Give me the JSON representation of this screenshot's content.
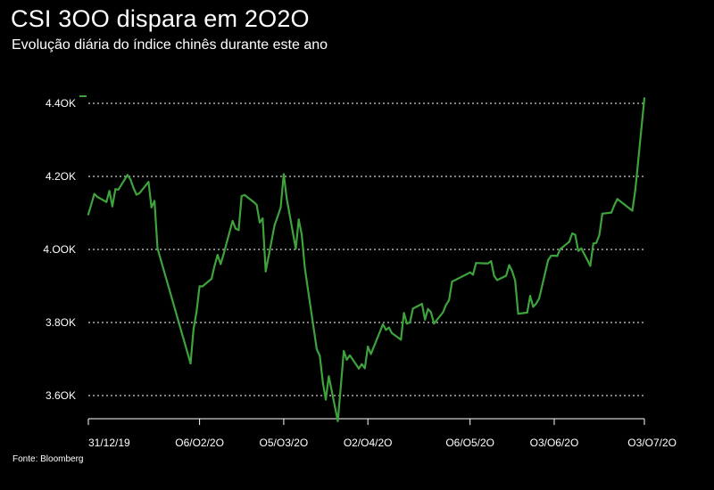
{
  "title": "CSI 3OO dispara em 2O2O",
  "subtitle": "Evolução diária do índice chinês durante este ano",
  "source": "Fonte: Bloomberg",
  "colors": {
    "background": "#000000",
    "line": "#3ea33c",
    "text": "#ffffff",
    "grid": "#ffffff"
  },
  "chart_data": {
    "type": "line",
    "title": "CSI 3OO dispara em 2O2O",
    "subtitle": "Evolução diária do índice chinês durante este ano",
    "xlabel": "",
    "ylabel": "",
    "grid": true,
    "grid_style": "dotted horizontal",
    "legend": "none",
    "ylim": [
      3530,
      4420
    ],
    "xlim": [
      "2019-12-31",
      "2020-07-03"
    ],
    "y_ticks": [
      3600,
      3800,
      4000,
      4200,
      4400
    ],
    "y_tick_labels": [
      "3.6OK",
      "3.8OK",
      "4.OOK",
      "4.2OK",
      "4.4OK"
    ],
    "x_ticks": [
      "2019-12-31",
      "2020-02-06",
      "2020-03-05",
      "2020-04-02",
      "2020-05-06",
      "2020-06-03",
      "2020-07-03"
    ],
    "x_tick_labels": [
      "31/12/19",
      "O6/O2/2O",
      "O5/O3/2O",
      "O2/O4/2O",
      "O6/O5/2O",
      "O3/O6/2O",
      "O3/O7/2O"
    ],
    "series": [
      {
        "values": [
          [
            "2019-12-31",
            4096
          ],
          [
            "2020-01-02",
            4152
          ],
          [
            "2020-01-03",
            4144
          ],
          [
            "2020-01-06",
            4130
          ],
          [
            "2020-01-07",
            4160
          ],
          [
            "2020-01-08",
            4118
          ],
          [
            "2020-01-09",
            4165
          ],
          [
            "2020-01-10",
            4164
          ],
          [
            "2020-01-13",
            4204
          ],
          [
            "2020-01-14",
            4192
          ],
          [
            "2020-01-15",
            4169
          ],
          [
            "2020-01-16",
            4150
          ],
          [
            "2020-01-17",
            4154
          ],
          [
            "2020-01-20",
            4185
          ],
          [
            "2020-01-21",
            4115
          ],
          [
            "2020-01-22",
            4133
          ],
          [
            "2020-01-23",
            4003
          ],
          [
            "2020-02-03",
            3688
          ],
          [
            "2020-02-04",
            3783
          ],
          [
            "2020-02-05",
            3829
          ],
          [
            "2020-02-06",
            3899
          ],
          [
            "2020-02-07",
            3899
          ],
          [
            "2020-02-10",
            3920
          ],
          [
            "2020-02-11",
            3955
          ],
          [
            "2020-02-12",
            3985
          ],
          [
            "2020-02-13",
            3960
          ],
          [
            "2020-02-14",
            3987
          ],
          [
            "2020-02-17",
            4078
          ],
          [
            "2020-02-18",
            4057
          ],
          [
            "2020-02-19",
            4053
          ],
          [
            "2020-02-20",
            4146
          ],
          [
            "2020-02-21",
            4149
          ],
          [
            "2020-02-24",
            4130
          ],
          [
            "2020-02-25",
            4122
          ],
          [
            "2020-02-26",
            4074
          ],
          [
            "2020-02-27",
            4085
          ],
          [
            "2020-02-28",
            3940
          ],
          [
            "2020-03-02",
            4068
          ],
          [
            "2020-03-03",
            4091
          ],
          [
            "2020-03-04",
            4115
          ],
          [
            "2020-03-05",
            4206
          ],
          [
            "2020-03-06",
            4139
          ],
          [
            "2020-03-09",
            4002
          ],
          [
            "2020-03-10",
            4082
          ],
          [
            "2020-03-11",
            4040
          ],
          [
            "2020-03-12",
            3951
          ],
          [
            "2020-03-13",
            3895
          ],
          [
            "2020-03-16",
            3727
          ],
          [
            "2020-03-17",
            3709
          ],
          [
            "2020-03-18",
            3637
          ],
          [
            "2020-03-19",
            3589
          ],
          [
            "2020-03-20",
            3653
          ],
          [
            "2020-03-23",
            3530
          ],
          [
            "2020-03-24",
            3626
          ],
          [
            "2020-03-25",
            3722
          ],
          [
            "2020-03-26",
            3698
          ],
          [
            "2020-03-27",
            3710
          ],
          [
            "2020-03-30",
            3674
          ],
          [
            "2020-03-31",
            3686
          ],
          [
            "2020-04-01",
            3675
          ],
          [
            "2020-04-02",
            3734
          ],
          [
            "2020-04-03",
            3714
          ],
          [
            "2020-04-07",
            3795
          ],
          [
            "2020-04-08",
            3780
          ],
          [
            "2020-04-09",
            3786
          ],
          [
            "2020-04-10",
            3771
          ],
          [
            "2020-04-13",
            3753
          ],
          [
            "2020-04-14",
            3826
          ],
          [
            "2020-04-15",
            3797
          ],
          [
            "2020-04-16",
            3800
          ],
          [
            "2020-04-17",
            3838
          ],
          [
            "2020-04-20",
            3851
          ],
          [
            "2020-04-21",
            3808
          ],
          [
            "2020-04-22",
            3837
          ],
          [
            "2020-04-23",
            3828
          ],
          [
            "2020-04-24",
            3797
          ],
          [
            "2020-04-27",
            3828
          ],
          [
            "2020-04-28",
            3848
          ],
          [
            "2020-04-29",
            3861
          ],
          [
            "2020-04-30",
            3912
          ],
          [
            "2020-05-06",
            3937
          ],
          [
            "2020-05-07",
            3931
          ],
          [
            "2020-05-08",
            3963
          ],
          [
            "2020-05-11",
            3962
          ],
          [
            "2020-05-12",
            3962
          ],
          [
            "2020-05-13",
            3968
          ],
          [
            "2020-05-14",
            3928
          ],
          [
            "2020-05-15",
            3916
          ],
          [
            "2020-05-18",
            3928
          ],
          [
            "2020-05-19",
            3957
          ],
          [
            "2020-05-20",
            3941
          ],
          [
            "2020-05-21",
            3915
          ],
          [
            "2020-05-22",
            3824
          ],
          [
            "2020-05-25",
            3827
          ],
          [
            "2020-05-26",
            3873
          ],
          [
            "2020-05-27",
            3843
          ],
          [
            "2020-05-28",
            3852
          ],
          [
            "2020-05-29",
            3866
          ],
          [
            "2020-06-01",
            3971
          ],
          [
            "2020-06-02",
            3983
          ],
          [
            "2020-06-03",
            3983
          ],
          [
            "2020-06-04",
            3982
          ],
          [
            "2020-06-05",
            4001
          ],
          [
            "2020-06-08",
            4021
          ],
          [
            "2020-06-09",
            4044
          ],
          [
            "2020-06-10",
            4040
          ],
          [
            "2020-06-11",
            3996
          ],
          [
            "2020-06-12",
            4003
          ],
          [
            "2020-06-15",
            3955
          ],
          [
            "2020-06-16",
            4016
          ],
          [
            "2020-06-17",
            4018
          ],
          [
            "2020-06-18",
            4039
          ],
          [
            "2020-06-19",
            4098
          ],
          [
            "2020-06-22",
            4101
          ],
          [
            "2020-06-23",
            4121
          ],
          [
            "2020-06-24",
            4138
          ],
          [
            "2020-06-29",
            4106
          ],
          [
            "2020-06-30",
            4164
          ],
          [
            "2020-07-01",
            4248
          ],
          [
            "2020-07-02",
            4330
          ],
          [
            "2020-07-03",
            4414
          ]
        ]
      }
    ]
  }
}
